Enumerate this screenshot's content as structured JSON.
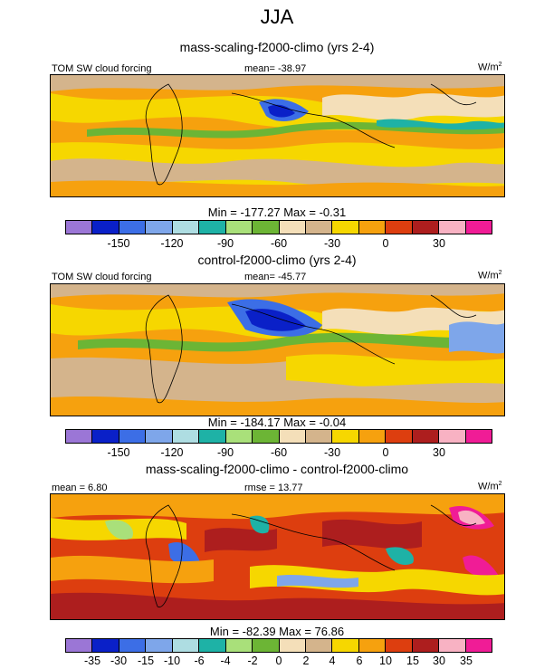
{
  "title": "JJA",
  "units": "W/m",
  "units_sup": "2",
  "palette_main": [
    "#9b76d6",
    "#0a20c8",
    "#3c6ee6",
    "#7ea6ea",
    "#aedde2",
    "#1eb2a6",
    "#a9e07a",
    "#6cb535",
    "#f4dfb9",
    "#d4b48c",
    "#f6d700",
    "#f6a10e",
    "#dd3e0f",
    "#ad1e1e",
    "#f8b2c3",
    "#f01c96"
  ],
  "palette_diff": [
    "#9b76d6",
    "#0a20c8",
    "#3c6ee6",
    "#7ea6ea",
    "#aedde2",
    "#1eb2a6",
    "#a9e07a",
    "#6cb535",
    "#f4dfb9",
    "#d4b48c",
    "#f6d700",
    "#f6a10e",
    "#dd3e0f",
    "#ad1e1e",
    "#f8b2c3",
    "#f01c96"
  ],
  "panels": [
    {
      "subtitle": "mass-scaling-f2000-climo (yrs 2-4)",
      "left_label": "TOM SW cloud forcing",
      "center_label": "mean= -38.97",
      "minmax": "Min = -177.27 Max =  -0.31",
      "ticks": [
        "-150",
        "-120",
        "-90",
        "-60",
        "-30",
        "0",
        "30"
      ]
    },
    {
      "subtitle": "control-f2000-climo (yrs 2-4)",
      "left_label": "TOM SW cloud forcing",
      "center_label": "mean= -45.77",
      "minmax": "Min = -184.17 Max =  -0.04",
      "ticks": [
        "-150",
        "-120",
        "-90",
        "-60",
        "-30",
        "0",
        "30"
      ]
    },
    {
      "subtitle": "mass-scaling-f2000-climo - control-f2000-climo",
      "left_label": "mean =   6.80",
      "center_label": "rmse =  13.77",
      "minmax": "Min = -82.39 Max =  76.86",
      "ticks": [
        "-35",
        "-30",
        "-15",
        "-10",
        "-6",
        "-4",
        "-2",
        "0",
        "2",
        "4",
        "6",
        "10",
        "15",
        "30",
        "35"
      ]
    }
  ]
}
